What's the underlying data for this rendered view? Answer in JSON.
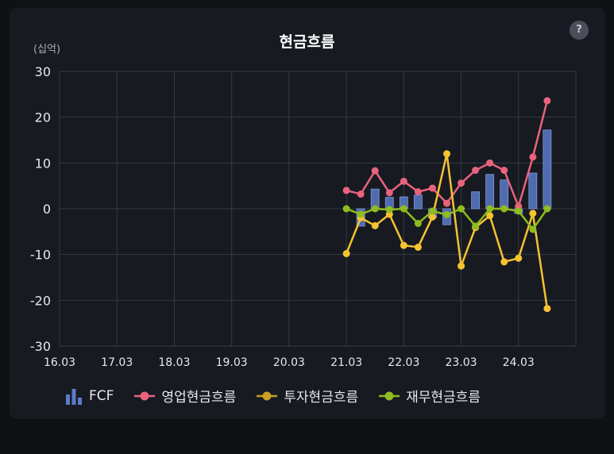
{
  "title": "현금흐름",
  "help_icon": "?",
  "unit_label": "(십억)",
  "colors": {
    "fcf": "#5a7bc8",
    "operating": "#e8637e",
    "investing": "#f5c232",
    "financing": "#8fbc1e",
    "grid": "#353a44",
    "text": "#e6e8ec"
  },
  "chart_data": {
    "type": "bar+line",
    "title": "현금흐름",
    "ylabel": "(십억)",
    "ylim": [
      -30,
      30
    ],
    "yticks": [
      30,
      20,
      10,
      0,
      -10,
      -20,
      -30
    ],
    "xticks": [
      "16.03",
      "17.03",
      "18.03",
      "19.03",
      "20.03",
      "21.03",
      "22.03",
      "23.03",
      "24.03"
    ],
    "x": [
      "21.03",
      "21.06",
      "21.09",
      "21.12",
      "22.03",
      "22.06",
      "22.09",
      "22.12",
      "23.03",
      "23.06",
      "23.09",
      "23.12",
      "24.03",
      "24.06",
      "24.09"
    ],
    "series": [
      {
        "name": "FCF",
        "kind": "bar",
        "values": [
          0,
          -3.8,
          4.3,
          2.5,
          2.6,
          3.0,
          -2.0,
          -3.5,
          0,
          3.7,
          7.5,
          6.3,
          -1.0,
          7.8,
          17.2
        ]
      },
      {
        "name": "영업현금흐름",
        "kind": "line",
        "values": [
          4.0,
          3.2,
          8.3,
          3.5,
          6.0,
          3.7,
          4.5,
          1.2,
          5.6,
          8.4,
          10.0,
          8.4,
          0.5,
          11.3,
          23.6
        ]
      },
      {
        "name": "투자현금흐름",
        "kind": "line",
        "values": [
          -9.8,
          -2.0,
          -3.7,
          -1.2,
          -8.0,
          -8.4,
          -1.8,
          12.0,
          -12.5,
          -4.1,
          -1.5,
          -11.6,
          -10.8,
          -1.0,
          -21.8
        ]
      },
      {
        "name": "재무현금흐름",
        "kind": "line",
        "values": [
          0,
          -1.2,
          0,
          -0.2,
          0,
          -3.2,
          -0.5,
          -1.3,
          0,
          -3.8,
          0,
          0,
          -0.5,
          -4.5,
          0
        ]
      }
    ]
  },
  "legend": {
    "fcf": "FCF",
    "operating": "영업현금흐름",
    "investing": "투자현금흐름",
    "financing": "재무현금흐름"
  }
}
